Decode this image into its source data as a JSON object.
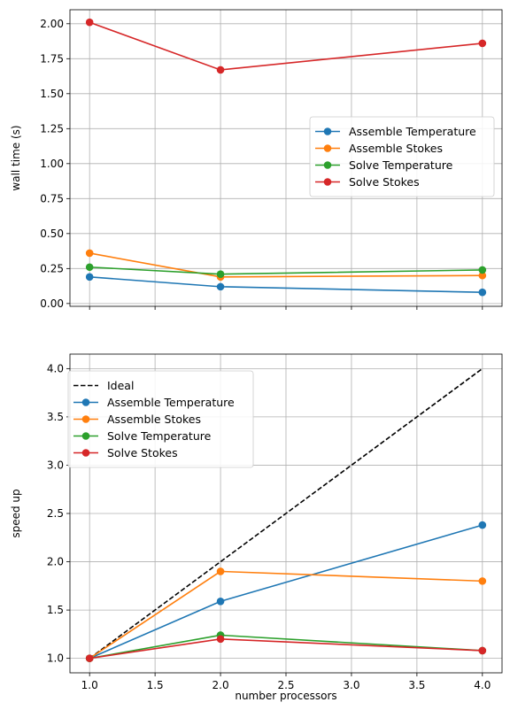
{
  "chart_data": [
    {
      "type": "line",
      "title": "",
      "xlabel": "",
      "ylabel": "wall time (s)",
      "x": [
        1,
        2,
        4
      ],
      "xlim": [
        0.85,
        4.15
      ],
      "ylim": [
        -0.02,
        2.1
      ],
      "xticks": [
        1.0,
        1.5,
        2.0,
        2.5,
        3.0,
        3.5,
        4.0
      ],
      "xtick_labels": [
        "",
        "",
        "",
        "",
        "",
        "",
        ""
      ],
      "yticks": [
        0.0,
        0.25,
        0.5,
        0.75,
        1.0,
        1.25,
        1.5,
        1.75,
        2.0
      ],
      "ytick_labels": [
        "0.00",
        "0.25",
        "0.50",
        "0.75",
        "1.00",
        "1.25",
        "1.50",
        "1.75",
        "2.00"
      ],
      "grid": true,
      "legend_position": "center-right",
      "series": [
        {
          "name": "Assemble Temperature",
          "color": "#1f77b4",
          "marker": "circle",
          "style": "solid",
          "values": [
            0.19,
            0.12,
            0.08
          ]
        },
        {
          "name": "Assemble Stokes",
          "color": "#ff7f0e",
          "marker": "circle",
          "style": "solid",
          "values": [
            0.36,
            0.19,
            0.2
          ]
        },
        {
          "name": "Solve Temperature",
          "color": "#2ca02c",
          "marker": "circle",
          "style": "solid",
          "values": [
            0.26,
            0.21,
            0.24
          ]
        },
        {
          "name": "Solve Stokes",
          "color": "#d62728",
          "marker": "circle",
          "style": "solid",
          "values": [
            2.01,
            1.67,
            1.86
          ]
        }
      ]
    },
    {
      "type": "line",
      "title": "",
      "xlabel": "number processors",
      "ylabel": "speed up",
      "x": [
        1,
        2,
        4
      ],
      "xlim": [
        0.85,
        4.15
      ],
      "ylim": [
        0.85,
        4.15
      ],
      "xticks": [
        1.0,
        1.5,
        2.0,
        2.5,
        3.0,
        3.5,
        4.0
      ],
      "xtick_labels": [
        "1.0",
        "1.5",
        "2.0",
        "2.5",
        "3.0",
        "3.5",
        "4.0"
      ],
      "yticks": [
        1.0,
        1.5,
        2.0,
        2.5,
        3.0,
        3.5,
        4.0
      ],
      "ytick_labels": [
        "1.0",
        "1.5",
        "2.0",
        "2.5",
        "3.0",
        "3.5",
        "4.0"
      ],
      "grid": true,
      "legend_position": "upper-left",
      "series": [
        {
          "name": "Ideal",
          "color": "#000000",
          "marker": "none",
          "style": "dashed",
          "values": [
            1,
            2,
            4
          ]
        },
        {
          "name": "Assemble Temperature",
          "color": "#1f77b4",
          "marker": "circle",
          "style": "solid",
          "values": [
            1.0,
            1.59,
            2.38
          ]
        },
        {
          "name": "Assemble Stokes",
          "color": "#ff7f0e",
          "marker": "circle",
          "style": "solid",
          "values": [
            1.0,
            1.9,
            1.8
          ]
        },
        {
          "name": "Solve Temperature",
          "color": "#2ca02c",
          "marker": "circle",
          "style": "solid",
          "values": [
            1.0,
            1.24,
            1.08
          ]
        },
        {
          "name": "Solve Stokes",
          "color": "#d62728",
          "marker": "circle",
          "style": "solid",
          "values": [
            1.0,
            1.2,
            1.08
          ]
        }
      ]
    }
  ]
}
